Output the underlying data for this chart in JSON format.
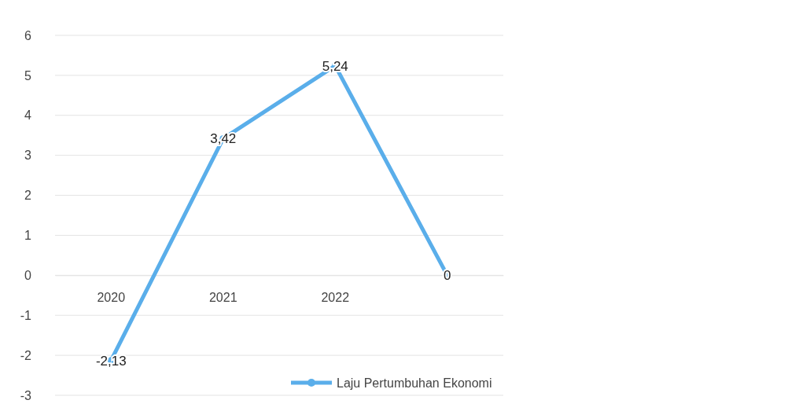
{
  "chart_data": {
    "type": "line",
    "categories": [
      "2020",
      "2021",
      "2022",
      null
    ],
    "series": [
      {
        "name": "Laju Pertumbuhan Ekonomi",
        "color": "#5aaeea",
        "values": [
          -2.13,
          3.42,
          5.24,
          0
        ],
        "value_labels": [
          "-2,13",
          "3,42",
          "5,24",
          "0"
        ]
      }
    ],
    "ylim": [
      -3,
      6
    ],
    "yticks": [
      -3,
      -2,
      -1,
      0,
      1,
      2,
      3,
      4,
      5,
      6
    ],
    "grid": "y",
    "legend": "bottom",
    "marker": "circle",
    "line_style": "solid"
  }
}
